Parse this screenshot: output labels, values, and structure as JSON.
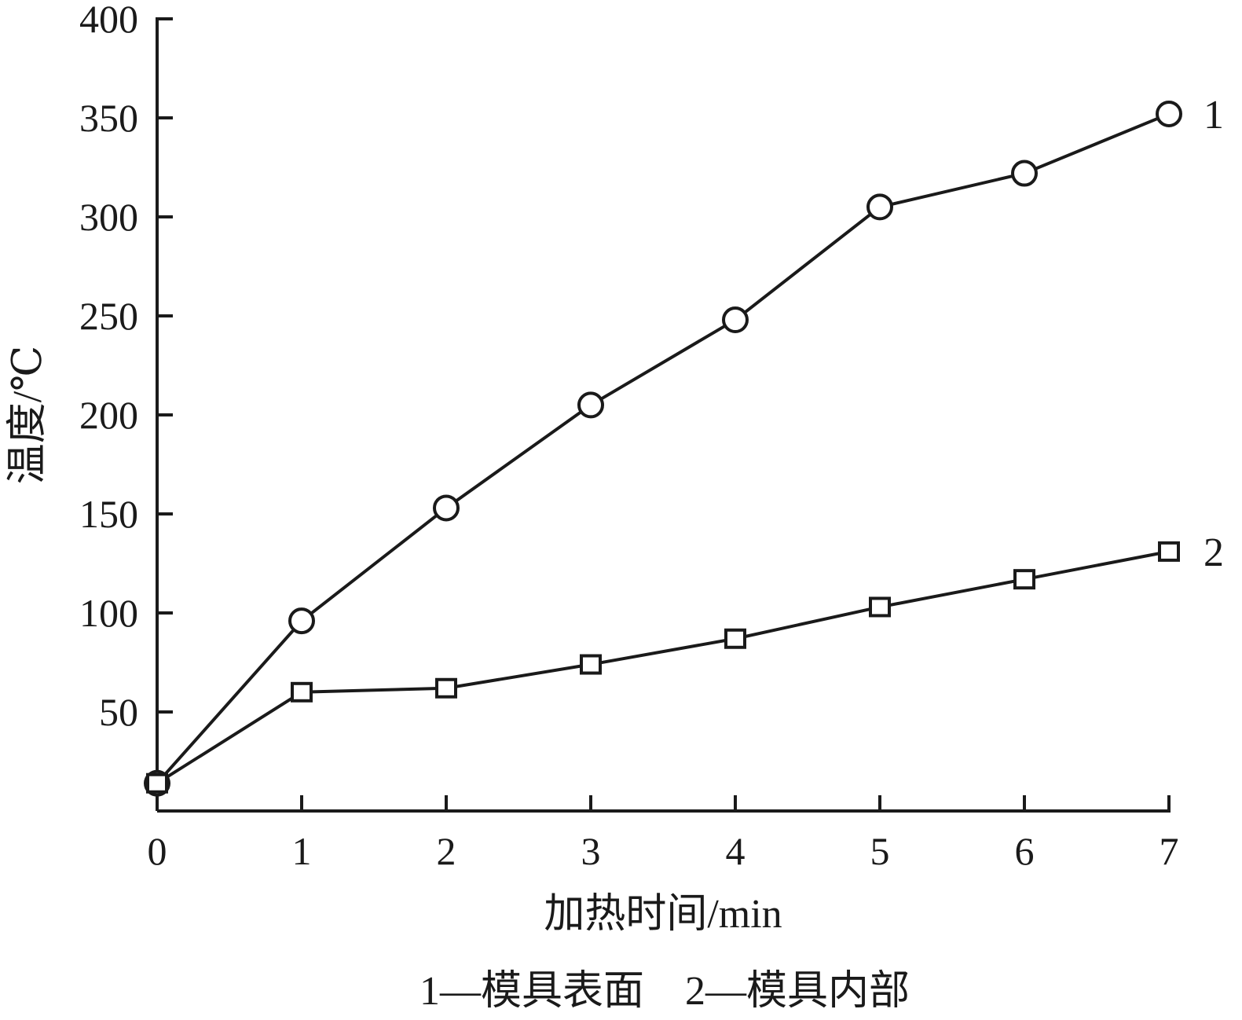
{
  "chart_data": {
    "type": "line",
    "xlabel": "加热时间/min",
    "ylabel": "温度/℃",
    "x": [
      0,
      1,
      2,
      3,
      4,
      5,
      6,
      7
    ],
    "xlim": [
      0,
      7
    ],
    "ylim": [
      0,
      400
    ],
    "x_ticks": [
      "0",
      "1",
      "2",
      "3",
      "4",
      "5",
      "6",
      "7"
    ],
    "y_ticks": [
      "50",
      "100",
      "150",
      "200",
      "250",
      "300",
      "350",
      "400"
    ],
    "y_tick_values": [
      50,
      100,
      150,
      200,
      250,
      300,
      350,
      400
    ],
    "grid": false,
    "series": [
      {
        "tag": "1",
        "marker": "circle",
        "values": [
          14,
          96,
          153,
          205,
          248,
          305,
          322,
          352
        ]
      },
      {
        "tag": "2",
        "marker": "square",
        "values": [
          14,
          60,
          62,
          74,
          87,
          103,
          117,
          131
        ]
      }
    ],
    "legend_text": "1—模具表面    2—模具内部",
    "colors": {
      "line": "#1a1a1a",
      "background": "#ffffff"
    }
  }
}
